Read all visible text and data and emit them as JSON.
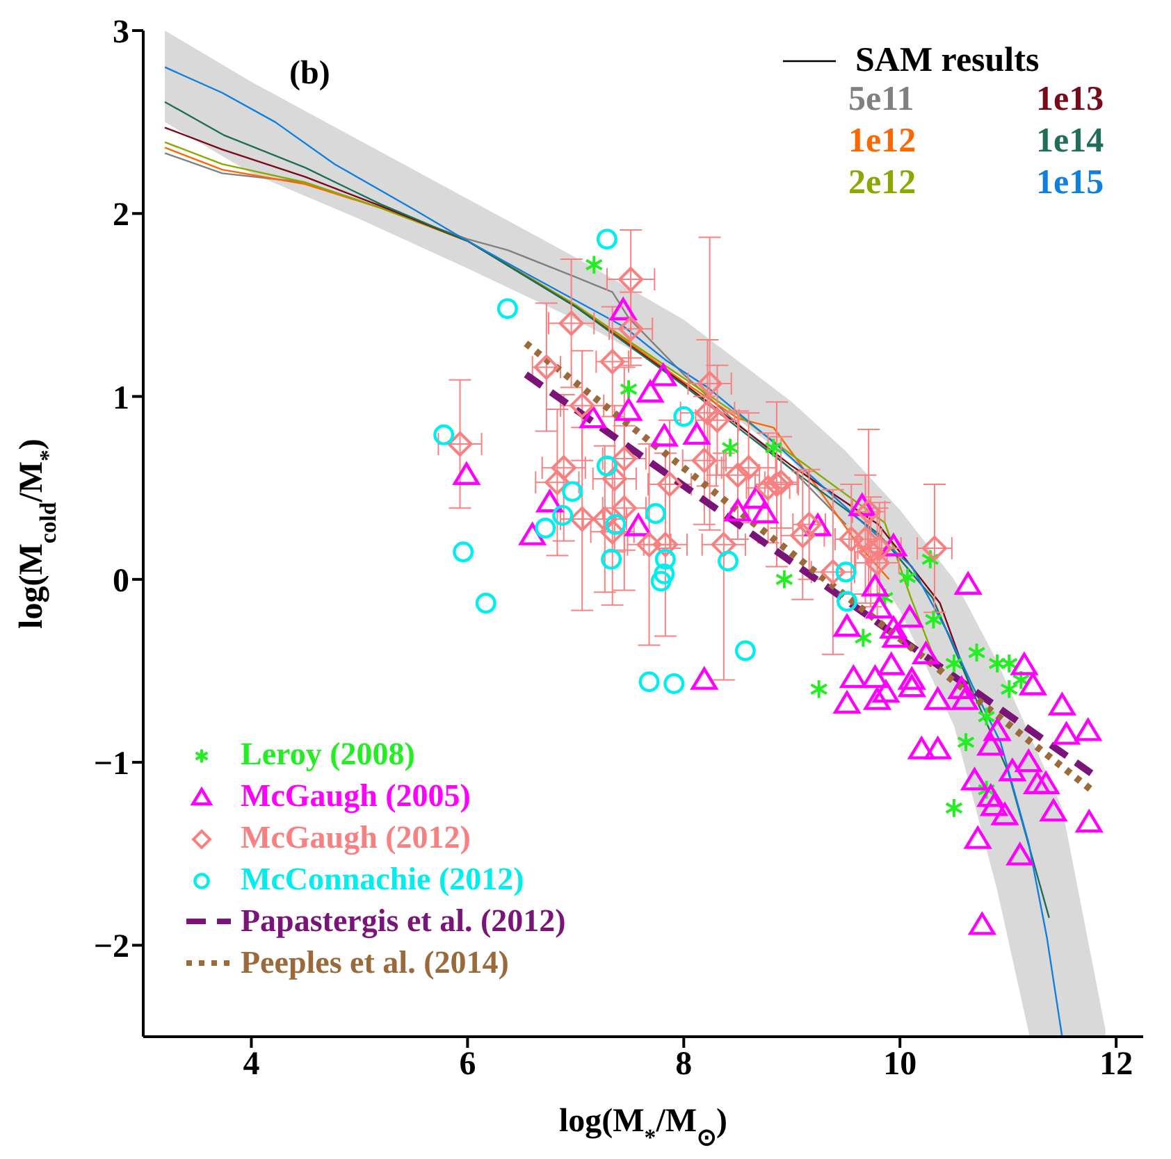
{
  "chart_data": {
    "type": "scatter",
    "xlabel": "log(M$_{*}$/M$_{⊙}$)",
    "ylabel": "log(M$_{cold}$/M$_{*}$)",
    "legend_title": "SAM results",
    "annotations": [
      "(b)"
    ],
    "xlim": [
      3,
      12.25
    ],
    "xticks": [
      4,
      6,
      8,
      10,
      12
    ],
    "ylim": [
      -2.5,
      3
    ],
    "yticks": [
      -2,
      -1,
      0,
      1,
      2,
      3
    ],
    "grid": false,
    "legend": "bottom left",
    "series": [
      {
        "type": "area",
        "color": "#d9d9d9",
        "x": [
          3.2,
          4.0,
          5.0,
          6.0,
          7.0,
          8.0,
          9.0,
          9.5,
          10.0,
          10.5,
          10.9,
          11.2,
          11.5,
          11.9
        ],
        "values": [
          null,
          null,
          null,
          null,
          null,
          null,
          null,
          null,
          null,
          null,
          null,
          null,
          null,
          null
        ],
        "lower": [
          2.5,
          2.22,
          1.97,
          1.7,
          1.42,
          1.1,
          0.65,
          0.28,
          -0.17,
          -0.8,
          -1.7,
          -2.5,
          -2.5,
          -2.5
        ],
        "upper": [
          3.0,
          2.72,
          2.4,
          2.08,
          1.76,
          1.42,
          0.97,
          0.7,
          0.38,
          0.0,
          -0.45,
          -0.85,
          -1.25,
          -2.46
        ]
      },
      {
        "type": "line",
        "name": "5e11",
        "color": "#808080",
        "x": [
          3.2,
          3.73,
          4.5,
          5.2,
          6.0,
          6.37,
          6.97,
          7.34,
          7.49,
          8.0,
          8.5,
          9.0,
          9.5
        ],
        "values": [
          2.33,
          2.22,
          2.17,
          2.03,
          1.86,
          1.8,
          1.66,
          1.57,
          1.43,
          1.12,
          0.85,
          0.6,
          0.3
        ]
      },
      {
        "type": "line",
        "name": "1e12",
        "color": "#ff6600",
        "x": [
          3.2,
          3.73,
          4.5,
          5.2,
          6.0,
          7.0,
          8.0,
          8.5,
          8.83,
          9.3,
          9.6,
          9.9
        ],
        "values": [
          2.36,
          2.24,
          2.16,
          2.03,
          1.85,
          1.5,
          1.08,
          0.88,
          0.83,
          0.45,
          0.2,
          0.0
        ]
      },
      {
        "type": "line",
        "name": "2e12",
        "color": "#88aa00",
        "x": [
          3.2,
          3.73,
          4.5,
          5.2,
          6.0,
          7.0,
          8.0,
          8.5,
          9.0,
          9.86,
          10.1,
          10.37
        ],
        "values": [
          2.39,
          2.27,
          2.17,
          2.03,
          1.85,
          1.5,
          1.1,
          0.9,
          0.68,
          0.31,
          -0.1,
          -0.51
        ]
      },
      {
        "type": "line",
        "name": "1e13",
        "color": "#7a0a1a",
        "x": [
          3.2,
          3.73,
          4.5,
          5.2,
          6.0,
          7.0,
          8.0,
          9.0,
          9.8,
          10.37,
          10.67
        ],
        "values": [
          2.47,
          2.35,
          2.2,
          2.04,
          1.85,
          1.49,
          1.07,
          0.62,
          0.3,
          -0.13,
          -0.62
        ]
      },
      {
        "type": "line",
        "name": "1e14",
        "color": "#1e6e5a",
        "x": [
          3.2,
          3.74,
          4.5,
          5.2,
          6.0,
          7.0,
          8.0,
          9.0,
          9.8,
          10.3,
          10.7,
          11.0,
          11.38
        ],
        "values": [
          2.61,
          2.43,
          2.25,
          2.05,
          1.85,
          1.49,
          1.06,
          0.6,
          0.25,
          -0.1,
          -0.65,
          -1.05,
          -1.85
        ]
      },
      {
        "type": "line",
        "name": "1e15",
        "color": "#1080e0",
        "x": [
          3.2,
          3.73,
          4.22,
          4.77,
          5.51,
          5.94,
          6.58,
          7.45,
          7.83,
          8.22,
          8.87,
          9.6,
          10.11,
          10.45,
          10.67,
          10.93,
          11.19,
          11.36,
          11.5
        ],
        "values": [
          2.8,
          2.66,
          2.5,
          2.27,
          2.02,
          1.87,
          1.66,
          1.38,
          1.2,
          1.05,
          0.73,
          0.34,
          0.07,
          -0.3,
          -0.58,
          -0.89,
          -1.44,
          -1.96,
          -2.5
        ]
      },
      {
        "type": "scatter",
        "name": "Leroy (2008)",
        "color": "#22ee22",
        "marker": "cross",
        "x": [
          7.17,
          7.49,
          8.43,
          8.83,
          8.93,
          9.25,
          9.66,
          9.86,
          10.07,
          10.28,
          10.31,
          10.5,
          10.71,
          10.9,
          11.01,
          11.01,
          11.12,
          10.61,
          10.8,
          10.8,
          10.5
        ],
        "values": [
          1.72,
          1.04,
          0.72,
          0.72,
          0.0,
          -0.6,
          -0.32,
          -0.1,
          0.01,
          0.11,
          -0.22,
          -0.46,
          -0.4,
          -0.46,
          -0.46,
          -0.6,
          -0.55,
          -0.89,
          -0.75,
          -1.15,
          -1.25
        ]
      },
      {
        "type": "scatter",
        "name": "McGaugh (2005)",
        "color": "#ff00ff",
        "marker": "triangle",
        "x": [
          7.44,
          7.81,
          7.69,
          7.49,
          7.16,
          7.82,
          8.12,
          5.99,
          6.76,
          6.6,
          7.58,
          8.19,
          8.5,
          8.67,
          8.75,
          9.24,
          9.65,
          9.94,
          10.63,
          9.77,
          9.81,
          9.51,
          9.94,
          10.09,
          9.96,
          10.24,
          9.92,
          9.57,
          9.77,
          10.11,
          9.51,
          9.79,
          9.87,
          10.11,
          10.35,
          10.57,
          10.6,
          11.15,
          11.23,
          11.5,
          11.54,
          11.74,
          10.9,
          10.84,
          10.2,
          10.35,
          11.04,
          11.19,
          11.27,
          11.35,
          10.69,
          10.84,
          10.87,
          10.97,
          11.42,
          11.75,
          10.72,
          11.11,
          10.76
        ],
        "values": [
          1.47,
          1.11,
          1.02,
          0.92,
          0.88,
          0.78,
          0.79,
          0.57,
          0.42,
          0.24,
          0.29,
          -0.55,
          0.37,
          0.44,
          0.36,
          0.29,
          0.4,
          0.18,
          -0.03,
          -0.04,
          -0.16,
          -0.26,
          -0.27,
          -0.21,
          -0.32,
          -0.41,
          -0.47,
          -0.54,
          -0.54,
          -0.55,
          -0.68,
          -0.66,
          -0.62,
          -0.59,
          -0.66,
          -0.6,
          -0.66,
          -0.47,
          -0.58,
          -0.69,
          -0.85,
          -0.83,
          -0.83,
          -0.91,
          -0.93,
          -0.93,
          -1.05,
          -1.0,
          -1.12,
          -1.12,
          -1.1,
          -1.19,
          -1.24,
          -1.29,
          -1.27,
          -1.33,
          -1.42,
          -1.51,
          -1.89
        ]
      },
      {
        "type": "scatter",
        "name": "McGaugh (2012)",
        "color": "#f88080",
        "marker": "diamond",
        "x": [
          7.51,
          6.96,
          7.34,
          6.73,
          7.51,
          7.06,
          6.89,
          6.83,
          7.06,
          7.27,
          7.45,
          7.36,
          7.45,
          7.68,
          7.83,
          8.24,
          8.22,
          8.31,
          8.19,
          7.87,
          8.37,
          8.6,
          8.5,
          8.86,
          8.78,
          9.1,
          5.93,
          7.34,
          8.9,
          9.16,
          9.38,
          9.55,
          9.68,
          9.71,
          9.73,
          9.79,
          9.81,
          10.32
        ],
        "values": [
          1.64,
          1.4,
          1.19,
          1.16,
          1.37,
          0.95,
          0.61,
          0.53,
          0.33,
          0.33,
          0.39,
          0.55,
          0.66,
          0.19,
          0.19,
          1.07,
          0.91,
          0.87,
          0.65,
          0.52,
          0.19,
          0.61,
          0.57,
          0.52,
          0.5,
          0.24,
          0.74,
          0.26,
          0.53,
          0.3,
          0.04,
          0.22,
          0.22,
          0.37,
          0.15,
          0.09,
          0.17,
          0.17
        ],
        "errors": [
          [
            1.21,
            1.91
          ],
          0.35,
          0.3,
          0.35,
          0.2,
          0.3,
          0.4,
          0.4,
          0.5,
          0.4,
          0.45,
          0.4,
          0.5,
          0.55,
          0.5,
          0.8,
          0.4,
          0.3,
          0.35,
          0.35,
          [
            -0.55,
            0.69
          ],
          0.3,
          0.35,
          0.45,
          0.3,
          0.35,
          0.35,
          0.4,
          0.25,
          0.3,
          0.45,
          0.3,
          0.35,
          0.45,
          0.3,
          0.3,
          0.25,
          0.35
        ],
        "xerrors": [
          0.22,
          0.21,
          0.15,
          0.13,
          0.2,
          0.2,
          0.2,
          0.2,
          0.2,
          0.2,
          0.2,
          0.2,
          0.2,
          0.2,
          0.2,
          0.2,
          0.25,
          0.2,
          0.2,
          0.2,
          0.2,
          0.25,
          0.2,
          0.2,
          0.2,
          0.2,
          0.2,
          0.2,
          0.15,
          0.15,
          0.2,
          0.15,
          0.15,
          0.15,
          0.15,
          0.2,
          0.2,
          0.16
        ]
      },
      {
        "type": "scatter",
        "name": "McConnachie (2012)",
        "color": "#00eeee",
        "marker": "circle",
        "x": [
          7.29,
          6.37,
          5.78,
          5.96,
          6.17,
          6.97,
          6.88,
          6.72,
          7.29,
          7.37,
          7.33,
          7.74,
          7.83,
          7.82,
          7.79,
          8.0,
          8.41,
          8.57,
          7.68,
          7.91,
          9.5,
          9.51
        ],
        "values": [
          1.86,
          1.48,
          0.79,
          0.15,
          -0.13,
          0.48,
          0.35,
          0.28,
          0.62,
          0.3,
          0.11,
          0.36,
          0.11,
          0.03,
          -0.01,
          0.89,
          0.1,
          -0.39,
          -0.56,
          -0.57,
          0.04,
          -0.12
        ]
      },
      {
        "type": "line",
        "name": "Papastergis et al. (2012)",
        "color": "#7a1478",
        "line_style": "dashed",
        "x": [
          6.54,
          11.77
        ],
        "values": [
          1.12,
          -1.06
        ]
      },
      {
        "type": "line",
        "name": "Peeples et al. (2014)",
        "color": "#9b6a3a",
        "line_style": "dotted",
        "x": [
          6.54,
          11.77
        ],
        "values": [
          1.29,
          -1.15
        ]
      }
    ]
  }
}
